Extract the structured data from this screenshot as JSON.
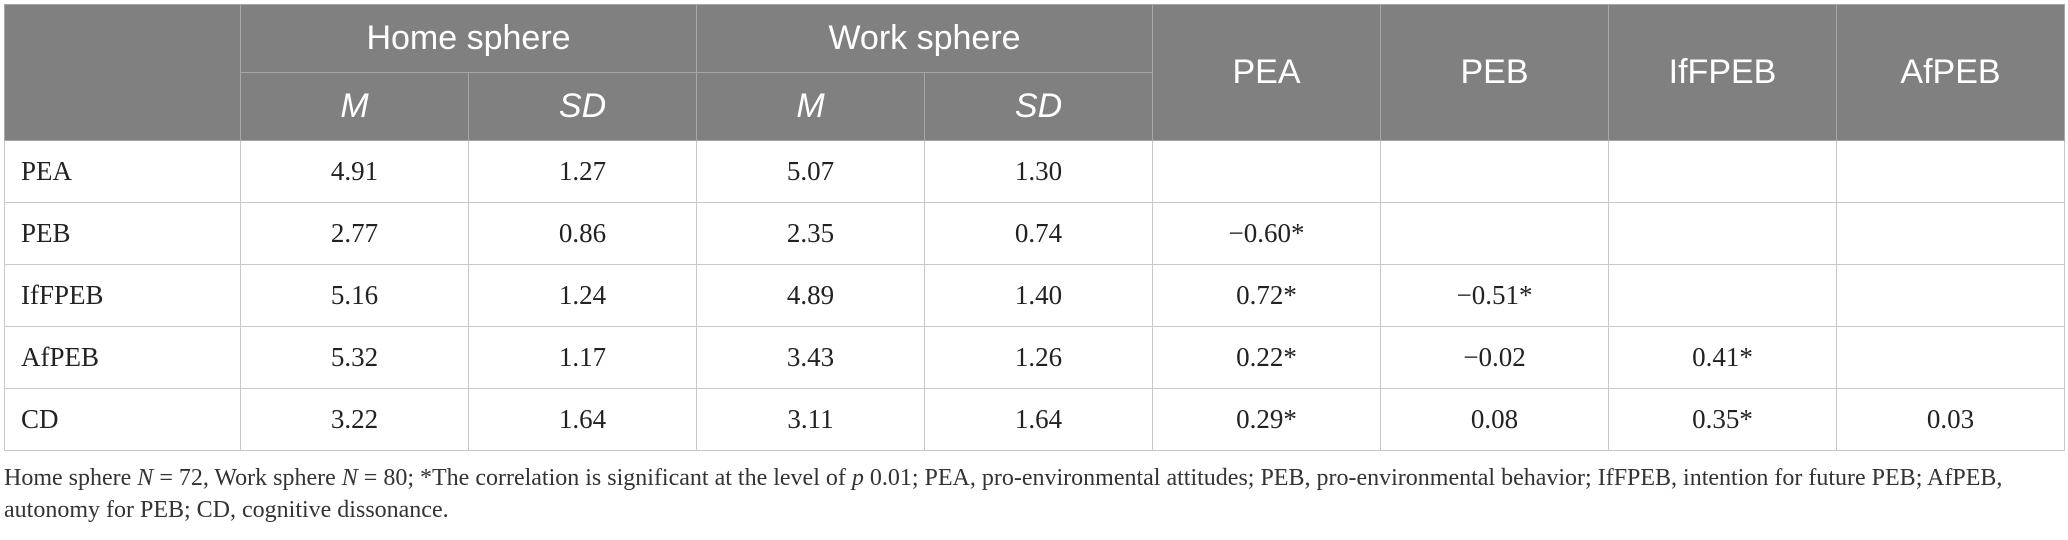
{
  "table": {
    "header": {
      "home_sphere": "Home sphere",
      "work_sphere": "Work sphere",
      "m": "M",
      "sd": "SD",
      "pea": "PEA",
      "peb": "PEB",
      "iffpeb": "IfFPEB",
      "afpeb": "AfPEB"
    },
    "rows": [
      {
        "label": "PEA",
        "home_m": "4.91",
        "home_sd": "1.27",
        "work_m": "5.07",
        "work_sd": "1.30",
        "pea": "",
        "peb": "",
        "iffpeb": "",
        "afpeb": ""
      },
      {
        "label": "PEB",
        "home_m": "2.77",
        "home_sd": "0.86",
        "work_m": "2.35",
        "work_sd": "0.74",
        "pea": "−0.60*",
        "peb": "",
        "iffpeb": "",
        "afpeb": ""
      },
      {
        "label": "IfFPEB",
        "home_m": "5.16",
        "home_sd": "1.24",
        "work_m": "4.89",
        "work_sd": "1.40",
        "pea": "0.72*",
        "peb": "−0.51*",
        "iffpeb": "",
        "afpeb": ""
      },
      {
        "label": "AfPEB",
        "home_m": "5.32",
        "home_sd": "1.17",
        "work_m": "3.43",
        "work_sd": "1.26",
        "pea": "0.22*",
        "peb": "−0.02",
        "iffpeb": "0.41*",
        "afpeb": ""
      },
      {
        "label": "CD",
        "home_m": "3.22",
        "home_sd": "1.64",
        "work_m": "3.11",
        "work_sd": "1.64",
        "pea": "0.29*",
        "peb": "0.08",
        "iffpeb": "0.35*",
        "afpeb": "0.03"
      }
    ]
  },
  "footnote": {
    "part1": "Home sphere ",
    "n1": "N",
    "part2": " = 72, Work sphere ",
    "n2": "N",
    "part3": " = 80; *The correlation is significant at the level of ",
    "p": "p",
    "part4": " 0.01; PEA, pro-environmental attitudes; PEB, pro-environmental behavior; IfFPEB, intention for future PEB; AfPEB, autonomy for PEB; CD, cognitive dissonance."
  }
}
